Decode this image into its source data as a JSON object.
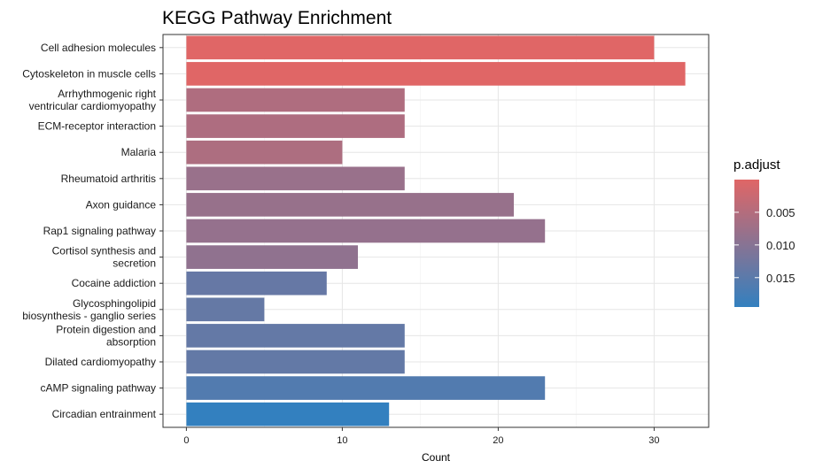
{
  "chart_data": {
    "type": "bar",
    "orientation": "horizontal",
    "title": "KEGG Pathway Enrichment",
    "xlabel": "Count",
    "ylabel": "",
    "xlim": [
      -1.5,
      33.5
    ],
    "xticks": [
      0,
      10,
      20,
      30
    ],
    "grid": true,
    "legend": {
      "title": "p.adjust",
      "position": "right",
      "ticks": [
        0.005,
        0.01,
        0.015
      ],
      "tick_labels": [
        "0.005",
        "0.010",
        "0.015"
      ],
      "range": [
        0.0,
        0.0195
      ],
      "low_color": "#E06666",
      "high_color": "#3380BF"
    },
    "categories": [
      "Cell adhesion molecules",
      "Cytoskeleton in muscle cells",
      "Arrhythmogenic right ventricular cardiomyopathy",
      "ECM-receptor interaction",
      "Malaria",
      "Rheumatoid arthritis",
      "Axon guidance",
      "Rap1 signaling pathway",
      "Cortisol synthesis and secretion",
      "Cocaine addiction",
      "Glycosphingolipid biosynthesis - ganglio series",
      "Protein digestion and absorption",
      "Dilated cardiomyopathy",
      "cAMP signaling pathway",
      "Circadian entrainment"
    ],
    "category_label_lines": [
      [
        "Cell adhesion molecules"
      ],
      [
        "Cytoskeleton in muscle cells"
      ],
      [
        "Arrhythmogenic right",
        "ventricular cardiomyopathy"
      ],
      [
        "ECM-receptor interaction"
      ],
      [
        "Malaria"
      ],
      [
        "Rheumatoid arthritis"
      ],
      [
        "Axon guidance"
      ],
      [
        "Rap1 signaling pathway"
      ],
      [
        "Cortisol synthesis and",
        "secretion"
      ],
      [
        "Cocaine addiction"
      ],
      [
        "Glycosphingolipid",
        "biosynthesis - ganglio series"
      ],
      [
        "Protein digestion and",
        "absorption"
      ],
      [
        "Dilated cardiomyopathy"
      ],
      [
        "cAMP signaling pathway"
      ],
      [
        "Circadian entrainment"
      ]
    ],
    "values": [
      30,
      32,
      14,
      14,
      10,
      14,
      21,
      23,
      11,
      9,
      5,
      14,
      14,
      23,
      13
    ],
    "p_adjust": [
      0.0,
      0.0,
      0.0055,
      0.0056,
      0.0058,
      0.008,
      0.0082,
      0.0085,
      0.009,
      0.0138,
      0.0139,
      0.014,
      0.0141,
      0.016,
      0.0195
    ]
  }
}
